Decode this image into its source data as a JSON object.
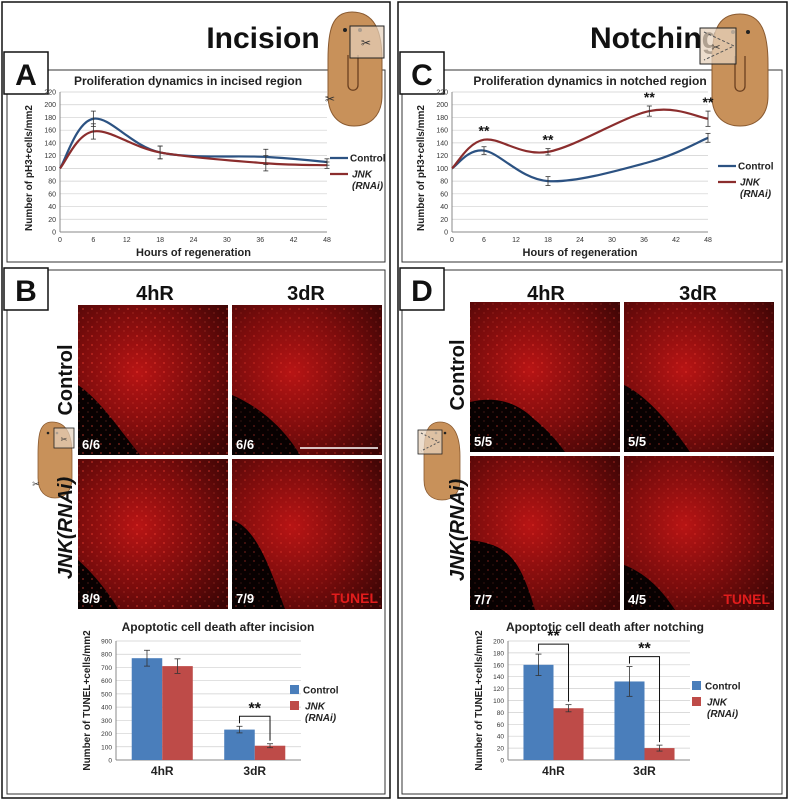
{
  "left": {
    "heading": "Incision",
    "panel_a": {
      "letter": "A"
    },
    "panel_b": {
      "letter": "B",
      "cols": [
        "4hR",
        "3dR"
      ],
      "rows": [
        "Control",
        "JNK(RNAi)"
      ],
      "counts": [
        "6/6",
        "6/6",
        "8/9",
        "7/9"
      ],
      "stain": "TUNEL"
    }
  },
  "right": {
    "heading": "Notching",
    "panel_c": {
      "letter": "C"
    },
    "panel_d": {
      "letter": "D",
      "cols": [
        "4hR",
        "3dR"
      ],
      "rows": [
        "Control",
        "JNK(RNAi)"
      ],
      "counts": [
        "5/5",
        "5/5",
        "7/7",
        "4/5"
      ],
      "stain": "TUNEL"
    }
  },
  "colors": {
    "control_line": "#2c5282",
    "jnk_line": "#8b2d2d",
    "control_bar": "#4a7ebb",
    "jnk_bar": "#be4b48",
    "planarian": "#c8915a"
  },
  "chart_data": [
    {
      "id": "A",
      "type": "line",
      "title": "Proliferation dynamics in incised region",
      "xlabel": "Hours of regeneration",
      "ylabel": "Number of pH3+cells/mm2",
      "xlim": [
        0,
        48
      ],
      "ylim": [
        0,
        220
      ],
      "xticks": [
        0,
        6,
        12,
        18,
        24,
        30,
        36,
        42,
        48
      ],
      "yticks": [
        0,
        20,
        40,
        60,
        80,
        100,
        120,
        140,
        160,
        180,
        200,
        220
      ],
      "grid": true,
      "legend_position": "right",
      "x": [
        0,
        6,
        18,
        37,
        48
      ],
      "series": [
        {
          "name": "Control",
          "values": [
            100,
            178,
            125,
            118,
            110
          ],
          "errors": [
            0,
            12,
            10,
            12,
            5
          ]
        },
        {
          "name": "JNK (RNAi)",
          "values": [
            100,
            158,
            125,
            108,
            105
          ],
          "errors": [
            0,
            12,
            10,
            12,
            5
          ]
        }
      ],
      "annotations": []
    },
    {
      "id": "C",
      "type": "line",
      "title": "Proliferation dynamics in notched region",
      "xlabel": "Hours of regeneration",
      "ylabel": "Number of pH3+cells/mm2",
      "xlim": [
        0,
        48
      ],
      "ylim": [
        0,
        220
      ],
      "xticks": [
        0,
        6,
        12,
        18,
        24,
        30,
        36,
        42,
        48
      ],
      "yticks": [
        0,
        20,
        40,
        60,
        80,
        100,
        120,
        140,
        160,
        180,
        200,
        220
      ],
      "grid": true,
      "legend_position": "right",
      "x": [
        0,
        6,
        18,
        37,
        48
      ],
      "series": [
        {
          "name": "Control",
          "values": [
            100,
            128,
            80,
            110,
            148
          ],
          "errors": [
            0,
            6,
            7,
            0,
            7
          ]
        },
        {
          "name": "JNK (RNAi)",
          "values": [
            100,
            145,
            126,
            190,
            178
          ],
          "errors": [
            0,
            0,
            5,
            8,
            12
          ]
        }
      ],
      "annotations": [
        {
          "x": 6,
          "text": "**"
        },
        {
          "x": 18,
          "text": "**"
        },
        {
          "x": 37,
          "text": "**"
        },
        {
          "x": 48,
          "text": "**"
        }
      ]
    },
    {
      "id": "B-bar",
      "type": "bar",
      "title": "Apoptotic cell death after incision",
      "ylabel": "Number of TUNEL+cells/mm2",
      "ylim": [
        0,
        900
      ],
      "yticks": [
        0,
        100,
        200,
        300,
        400,
        500,
        600,
        700,
        800,
        900
      ],
      "grid": true,
      "legend_position": "right",
      "categories": [
        "4hR",
        "3dR"
      ],
      "series": [
        {
          "name": "Control",
          "values": [
            770,
            230
          ],
          "errors": [
            60,
            25
          ]
        },
        {
          "name": "JNK (RNAi)",
          "values": [
            710,
            108
          ],
          "errors": [
            55,
            15
          ]
        }
      ],
      "annotations": [
        {
          "category": "3dR",
          "text": "**"
        }
      ]
    },
    {
      "id": "D-bar",
      "type": "bar",
      "title": "Apoptotic cell death after notching",
      "ylabel": "Number of TUNEL+cells/mm2",
      "ylim": [
        0,
        200
      ],
      "yticks": [
        0,
        20,
        40,
        60,
        80,
        100,
        120,
        140,
        160,
        180,
        200
      ],
      "grid": true,
      "legend_position": "right",
      "categories": [
        "4hR",
        "3dR"
      ],
      "series": [
        {
          "name": "Control",
          "values": [
            160,
            132
          ],
          "errors": [
            18,
            25
          ]
        },
        {
          "name": "JNK (RNAi)",
          "values": [
            87,
            20
          ],
          "errors": [
            6,
            5
          ]
        }
      ],
      "annotations": [
        {
          "category": "4hR",
          "text": "**"
        },
        {
          "category": "3dR",
          "text": "**"
        }
      ]
    }
  ]
}
